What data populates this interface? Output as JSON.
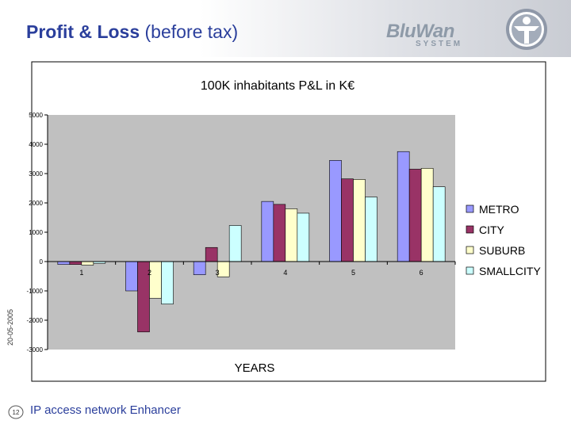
{
  "slide": {
    "title_main": "Profit & Loss",
    "title_sub": "(before tax)",
    "date": "20-05-2005",
    "page_number": "12",
    "footer": "IP access network Enhancer"
  },
  "logo": {
    "main": "BluWan",
    "sub": "SYSTEM"
  },
  "colors": {
    "title": "#2b3f9c",
    "plot_bg": "#c0c0c0",
    "metro": "#9999ff",
    "city": "#993366",
    "suburb": "#ffffcc",
    "smallcity": "#ccffff"
  },
  "chart_data": {
    "type": "bar",
    "title": "100K inhabitants P&L in K€",
    "xlabel": "YEARS",
    "ylabel": "",
    "categories": [
      "1",
      "2",
      "3",
      "4",
      "5",
      "6"
    ],
    "ylim": [
      -3000,
      5000
    ],
    "yticks": [
      "5000",
      "4000",
      "3000",
      "2000",
      "1000",
      "0",
      "-1000",
      "-2000",
      "-3000"
    ],
    "legend_position": "right",
    "series": [
      {
        "name": "METRO",
        "color": "#9999ff",
        "values": [
          -100,
          -1000,
          -450,
          2050,
          3450,
          3750
        ]
      },
      {
        "name": "CITY",
        "color": "#993366",
        "values": [
          -100,
          -2400,
          480,
          1950,
          2820,
          3150
        ]
      },
      {
        "name": "SUBURB",
        "color": "#ffffcc",
        "values": [
          -120,
          -1250,
          -520,
          1800,
          2800,
          3180
        ]
      },
      {
        "name": "SMALLCITY",
        "color": "#ccffff",
        "values": [
          -60,
          -1450,
          1230,
          1650,
          2200,
          2550
        ]
      }
    ]
  }
}
